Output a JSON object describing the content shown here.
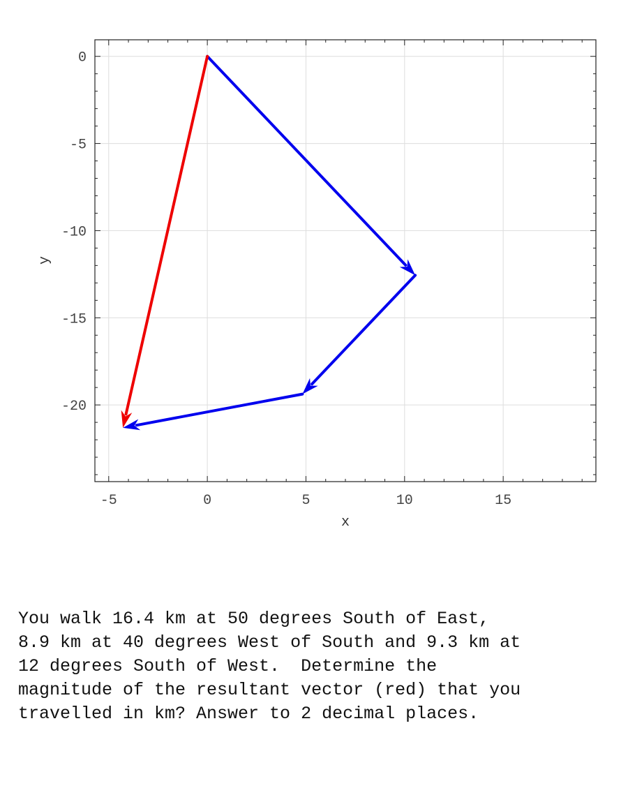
{
  "chart_data": {
    "type": "line",
    "xlabel": "x",
    "ylabel": "y",
    "xlim": [
      -5.7,
      19.7
    ],
    "ylim": [
      -24.4,
      0.95
    ],
    "x_ticks": [
      -5,
      0,
      5,
      10,
      15
    ],
    "y_ticks": [
      0,
      -5,
      -10,
      -15,
      -20
    ],
    "x_tick_labels": [
      "-5",
      "0",
      "5",
      "10",
      "15"
    ],
    "y_tick_labels": [
      "0",
      "-5",
      "-10",
      "-15",
      "-20"
    ],
    "grid": true,
    "vectors": [
      {
        "from": [
          0,
          0
        ],
        "to": [
          10.54,
          -12.56
        ],
        "color": "#0000ee"
      },
      {
        "from": [
          10.54,
          -12.56
        ],
        "to": [
          4.82,
          -19.38
        ],
        "color": "#0000ee"
      },
      {
        "from": [
          4.82,
          -19.38
        ],
        "to": [
          -4.28,
          -21.31
        ],
        "color": "#0000ee"
      },
      {
        "from": [
          0,
          0
        ],
        "to": [
          -4.28,
          -21.31
        ],
        "color": "#ee0000"
      }
    ]
  },
  "question": {
    "lines": [
      "You walk 16.4 km at 50 degrees South of East,",
      "8.9 km at 40 degrees West of South and 9.3 km at",
      "12 degrees South of West.  Determine the",
      "magnitude of the resultant vector (red) that you",
      "travelled in km? Answer to 2 decimal places."
    ]
  }
}
